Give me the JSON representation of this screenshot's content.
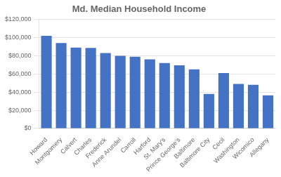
{
  "chart_data": {
    "type": "bar",
    "title": "Md. Median Household Income",
    "categories": [
      "Howard",
      "Montgomery",
      "Calvert",
      "Charles",
      "Frederick",
      "Anne Arundel",
      "Carroll",
      "Harford",
      "St. Mary's",
      "Prince George's",
      "Baltimore",
      "Baltimore City",
      "Cecil",
      "Washington",
      "Wicomico",
      "Allegany"
    ],
    "values": [
      102000,
      94000,
      89000,
      88500,
      83000,
      80000,
      79000,
      76000,
      72000,
      69500,
      65000,
      38000,
      61000,
      49000,
      48000,
      36500
    ],
    "color": "#4472C4",
    "ylim": [
      0,
      120000
    ],
    "yticks": [
      {
        "value": 0,
        "label": "$0"
      },
      {
        "value": 20000,
        "label": "$20,000"
      },
      {
        "value": 40000,
        "label": "$40,000"
      },
      {
        "value": 60000,
        "label": "$60,000"
      },
      {
        "value": 80000,
        "label": "$80,000"
      },
      {
        "value": 100000,
        "label": "$100,000"
      },
      {
        "value": 120000,
        "label": "$120,000"
      }
    ],
    "grid": true
  }
}
